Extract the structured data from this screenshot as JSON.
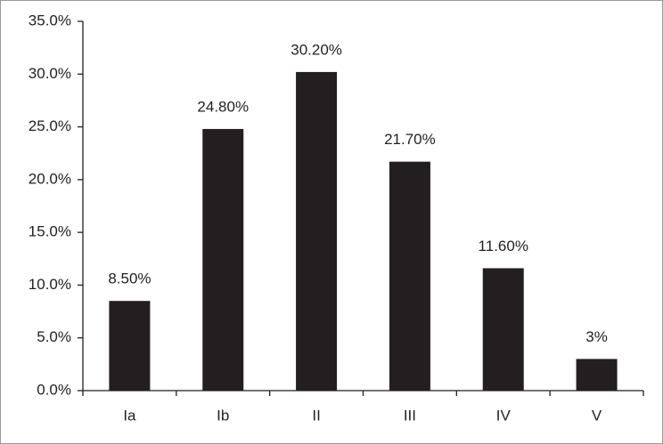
{
  "chart_data": {
    "type": "bar",
    "categories": [
      "Ia",
      "Ib",
      "II",
      "III",
      "IV",
      "V"
    ],
    "values": [
      8.5,
      24.8,
      30.2,
      21.7,
      11.6,
      3
    ],
    "value_labels": [
      "8.50%",
      "24.80%",
      "30.20%",
      "21.70%",
      "11.60%",
      "3%"
    ],
    "color": "#231f20",
    "ylim": [
      0,
      35
    ],
    "yticks": [
      {
        "value": 0,
        "label": "0.0%"
      },
      {
        "value": 5,
        "label": "5.0%"
      },
      {
        "value": 10,
        "label": "10.0%"
      },
      {
        "value": 15,
        "label": "15.0%"
      },
      {
        "value": 20,
        "label": "20.0%"
      },
      {
        "value": 25,
        "label": "25.0%"
      },
      {
        "value": 30,
        "label": "30.0%"
      },
      {
        "value": 35,
        "label": "35.0%"
      }
    ],
    "grid": false
  }
}
